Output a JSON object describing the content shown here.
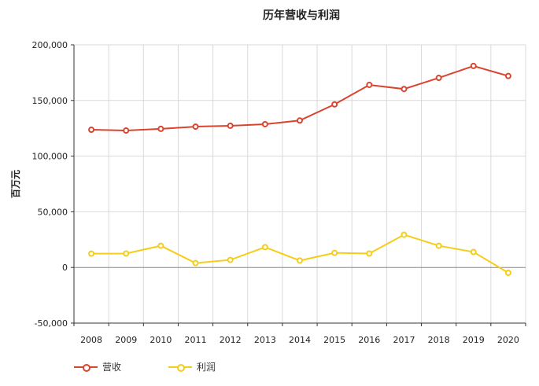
{
  "chart_data": {
    "type": "line",
    "title": "历年营收与利润",
    "xlabel": "",
    "ylabel": "百万元",
    "categories": [
      "2008",
      "2009",
      "2010",
      "2011",
      "2012",
      "2013",
      "2014",
      "2015",
      "2016",
      "2017",
      "2018",
      "2019",
      "2020"
    ],
    "ylim": [
      -50000,
      200000
    ],
    "yticks": [
      -50000,
      0,
      50000,
      100000,
      150000,
      200000
    ],
    "ytick_labels": [
      "-50,000",
      "0",
      "50,000",
      "100,000",
      "150,000",
      "200,000"
    ],
    "grid": true,
    "legend_position": "bottom-left",
    "series": [
      {
        "name": "营收",
        "color": "#d9442f",
        "values": [
          123700,
          123000,
          124500,
          126500,
          127300,
          128700,
          132000,
          146500,
          164000,
          160300,
          170300,
          181000,
          172000
        ]
      },
      {
        "name": "利润",
        "color": "#f5cd19",
        "values": [
          12400,
          12500,
          19500,
          3900,
          6800,
          18200,
          6200,
          13100,
          12500,
          29400,
          19500,
          13900,
          -4800
        ]
      }
    ]
  }
}
